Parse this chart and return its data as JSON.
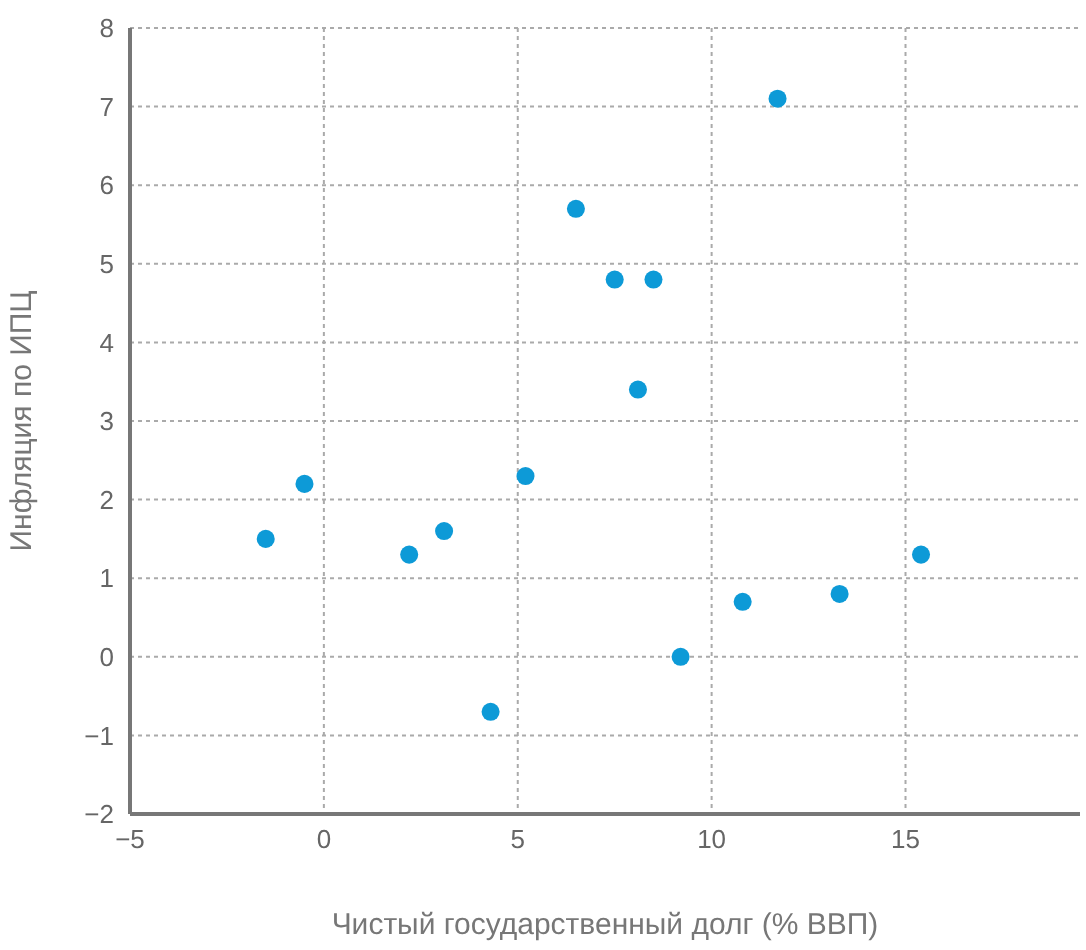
{
  "chart_data": {
    "type": "scatter",
    "xlabel": "Чистый государственный долг (% ВВП)",
    "ylabel": "Инфляция по ИПЦ",
    "x": [
      11.7,
      6.5,
      7.5,
      8.5,
      8.1,
      5.2,
      -0.5,
      -1.5,
      2.2,
      3.1,
      15.4,
      10.8,
      13.3,
      9.2,
      4.3
    ],
    "values": [
      7.1,
      5.7,
      4.8,
      4.8,
      3.4,
      2.3,
      2.2,
      1.5,
      1.3,
      1.6,
      1.3,
      0.7,
      0.8,
      0.0,
      -0.7
    ],
    "color": "#0d9ad7",
    "marker": "circle",
    "xlim": [
      -5,
      19.5
    ],
    "xticks": [
      {
        "value": -5,
        "label": "−5"
      },
      0,
      5,
      10,
      15
    ],
    "ylim": [
      -2,
      8
    ],
    "yticks": [
      {
        "value": -2,
        "label": "−2"
      },
      {
        "value": -1,
        "label": "−1"
      },
      0,
      1,
      2,
      3,
      4,
      5,
      6,
      7,
      8
    ],
    "grid": true
  }
}
